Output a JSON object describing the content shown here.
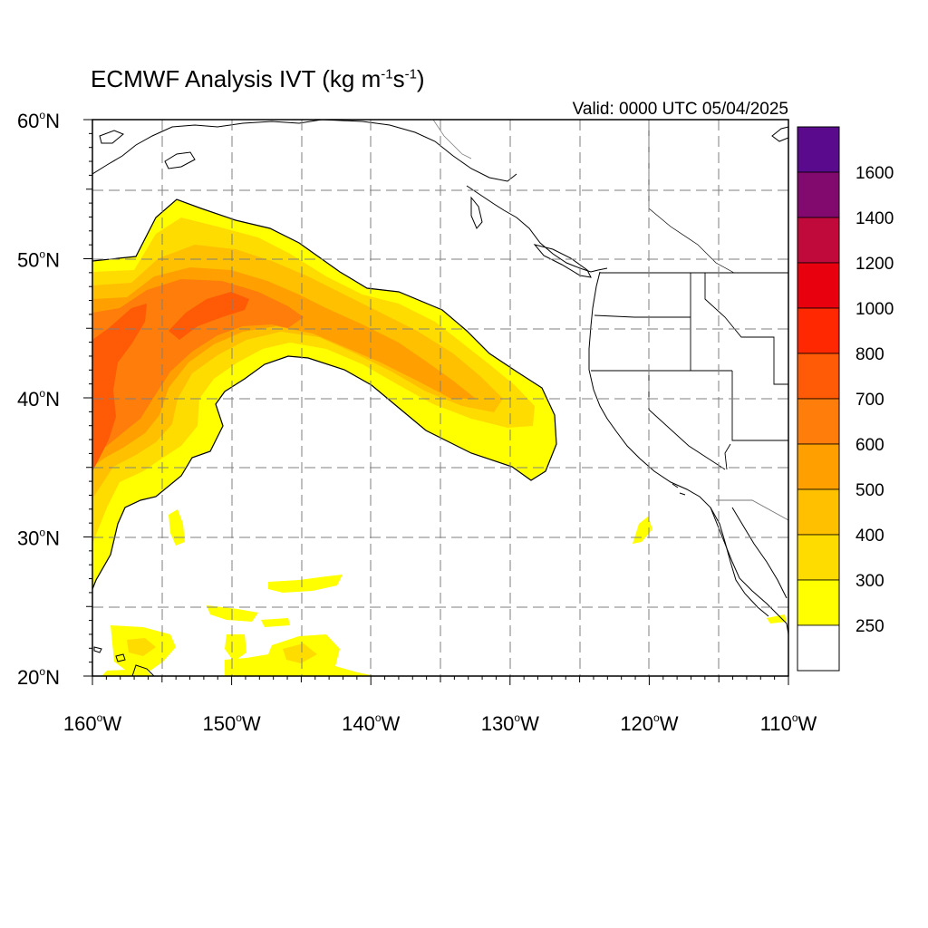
{
  "map": {
    "title_main": "ECMWF Analysis IVT (kg m",
    "title_exp1": "-1",
    "title_mid": "s",
    "title_exp2": "-1",
    "title_end": ")",
    "valid_label": "Valid: 0000 UTC 05/04/2025",
    "extent": {
      "lon_min": -160,
      "lon_max": -110,
      "lat_min": 20,
      "lat_max": 60
    },
    "lat_ticks": [
      {
        "value": 60,
        "num": "60",
        "hem": "N"
      },
      {
        "value": 50,
        "num": "50",
        "hem": "N"
      },
      {
        "value": 40,
        "num": "40",
        "hem": "N"
      },
      {
        "value": 30,
        "num": "30",
        "hem": "N"
      },
      {
        "value": 20,
        "num": "20",
        "hem": "N"
      }
    ],
    "lon_ticks": [
      {
        "value": -160,
        "num": "160",
        "hem": "W"
      },
      {
        "value": -150,
        "num": "150",
        "hem": "W"
      },
      {
        "value": -140,
        "num": "140",
        "hem": "W"
      },
      {
        "value": -130,
        "num": "130",
        "hem": "W"
      },
      {
        "value": -120,
        "num": "120",
        "hem": "W"
      },
      {
        "value": -110,
        "num": "110",
        "hem": "W"
      }
    ],
    "gridlines": "dashed"
  },
  "legend": {
    "levels": [
      {
        "label": "",
        "color": "#5a0a8c"
      },
      {
        "label": "1600",
        "color": "#820a6e"
      },
      {
        "label": "1400",
        "color": "#c00a3c"
      },
      {
        "label": "1200",
        "color": "#e8000f"
      },
      {
        "label": "1000",
        "color": "#ff2800"
      },
      {
        "label": "800",
        "color": "#ff5a05"
      },
      {
        "label": "700",
        "color": "#ff7d0a"
      },
      {
        "label": "600",
        "color": "#ffa000"
      },
      {
        "label": "500",
        "color": "#ffc000"
      },
      {
        "label": "400",
        "color": "#ffdc00"
      },
      {
        "label": "300",
        "color": "#ffff00"
      },
      {
        "label": "250",
        "color": "#ffffff"
      }
    ]
  },
  "colors": {
    "ivt_250": "#ffff00",
    "ivt_300": "#ffdc00",
    "ivt_400": "#ffc000",
    "ivt_500": "#ffa000",
    "ivt_600": "#ff7d0a",
    "ivt_700": "#ff5a05",
    "coast": "#000000",
    "grid": "#7f7f7f"
  }
}
